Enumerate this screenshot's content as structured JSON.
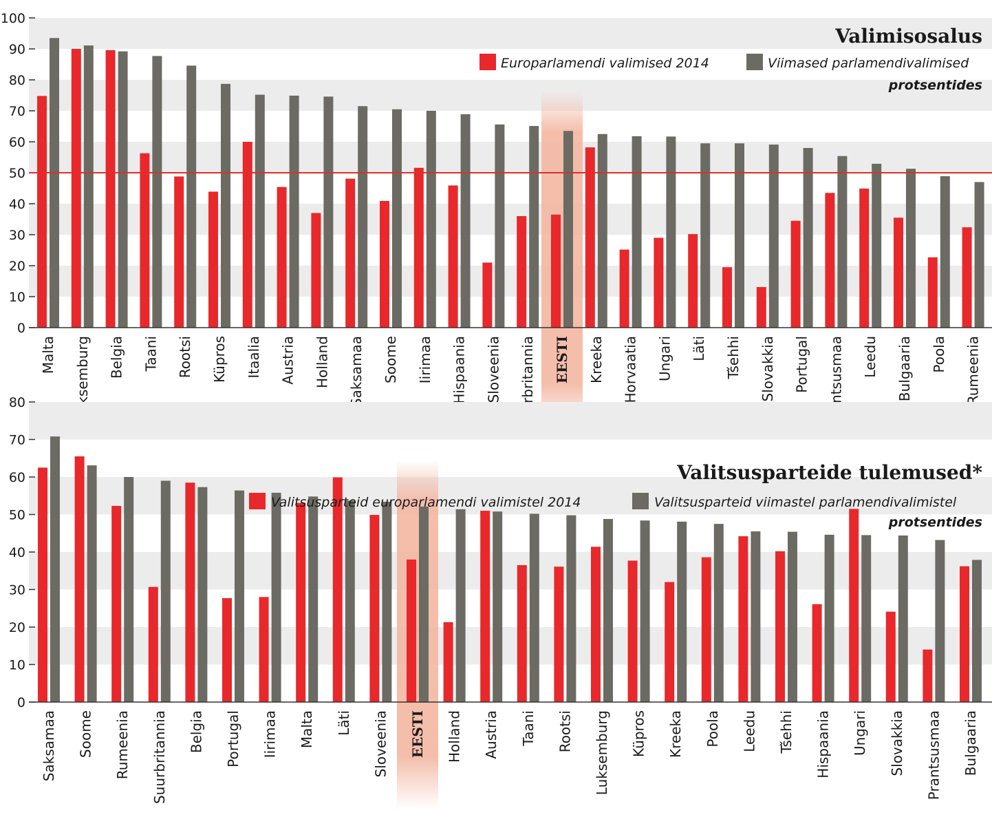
{
  "colors": {
    "red": "#e8282b",
    "gray": "#6b6b63",
    "band": "#ececec",
    "highlight": "#f3b7a2",
    "refline": "#d9302a"
  },
  "chart_data": [
    {
      "type": "bar",
      "title": "Valimisosalus",
      "unit_label": "protsentides",
      "ylim": [
        0,
        100
      ],
      "yticks": [
        "0",
        "10",
        "20",
        "30",
        "40",
        "50",
        "60",
        "70",
        "80",
        "90",
        "100"
      ],
      "reference_line": 50,
      "highlight_category": "EESTI",
      "categories": [
        "Malta",
        "Luksemburg",
        "Belgia",
        "Taani",
        "Rootsi",
        "Küpros",
        "Itaalia",
        "Austria",
        "Holland",
        "Saksamaa",
        "Soome",
        "Iirimaa",
        "Hispaania",
        "Sloveenia",
        "Suurbritannia",
        "EESTI",
        "Kreeka",
        "Horvaatia",
        "Ungari",
        "Läti",
        "Tšehhi",
        "Slovakkia",
        "Portugal",
        "Prantsusmaa",
        "Leedu",
        "Bulgaaria",
        "Poola",
        "Rumeenia"
      ],
      "series": [
        {
          "name": "Europarlamendi valimised 2014",
          "color": "#e8282b",
          "values": [
            74.8,
            90.0,
            89.6,
            56.3,
            48.8,
            43.9,
            60.0,
            45.4,
            37.0,
            48.1,
            40.9,
            51.6,
            45.9,
            21.0,
            36.0,
            36.5,
            58.2,
            25.2,
            29.0,
            30.2,
            19.5,
            13.1,
            34.5,
            43.5,
            44.9,
            35.5,
            22.7,
            32.4
          ]
        },
        {
          "name": "Viimased parlamendivalimised",
          "color": "#6b6b63",
          "values": [
            93.5,
            91.1,
            89.2,
            87.7,
            84.6,
            78.7,
            75.2,
            74.9,
            74.6,
            71.5,
            70.5,
            70.0,
            68.9,
            65.6,
            65.1,
            63.5,
            62.5,
            61.8,
            61.7,
            59.5,
            59.5,
            59.1,
            58.0,
            55.4,
            52.9,
            51.3,
            48.9,
            47.0
          ]
        }
      ]
    },
    {
      "type": "bar",
      "title": "Valitsusparteide tulemused*",
      "unit_label": "protsentides",
      "ylim": [
        0,
        80
      ],
      "yticks": [
        "0",
        "10",
        "20",
        "30",
        "40",
        "50",
        "60",
        "70",
        "80"
      ],
      "highlight_category": "EESTI",
      "categories": [
        "Saksamaa",
        "Soome",
        "Rumeenia",
        "Suurbritannia",
        "Belgia",
        "Portugal",
        "Iirimaa",
        "Malta",
        "Läti",
        "Sloveenia",
        "EESTI",
        "Holland",
        "Austria",
        "Taani",
        "Rootsi",
        "Luksemburg",
        "Küpros",
        "Kreeka",
        "Poola",
        "Leedu",
        "Tšehhi",
        "Hispaania",
        "Ungari",
        "Slovakkia",
        "Prantsusmaa",
        "Bulgaaria"
      ],
      "series": [
        {
          "name": "Valitsusparteid europarlamendi valimistel 2014",
          "color": "#e8282b",
          "values": [
            62.5,
            65.5,
            52.3,
            30.7,
            58.5,
            27.7,
            28.0,
            53.1,
            59.9,
            49.9,
            38.0,
            21.3,
            51.0,
            36.5,
            36.1,
            41.4,
            37.7,
            32.0,
            38.6,
            44.2,
            40.2,
            26.1,
            51.5,
            24.1,
            14.0,
            36.2
          ]
        },
        {
          "name": "Valitsusparteid viimastel parlamendivalimistel",
          "color": "#6b6b63",
          "values": [
            70.8,
            63.1,
            60.0,
            59.0,
            57.3,
            56.4,
            55.8,
            54.8,
            53.7,
            53.4,
            52.1,
            51.4,
            50.8,
            50.2,
            49.8,
            48.8,
            48.4,
            48.1,
            47.5,
            45.5,
            45.4,
            44.6,
            44.5,
            44.4,
            43.2,
            37.9
          ]
        }
      ]
    }
  ]
}
